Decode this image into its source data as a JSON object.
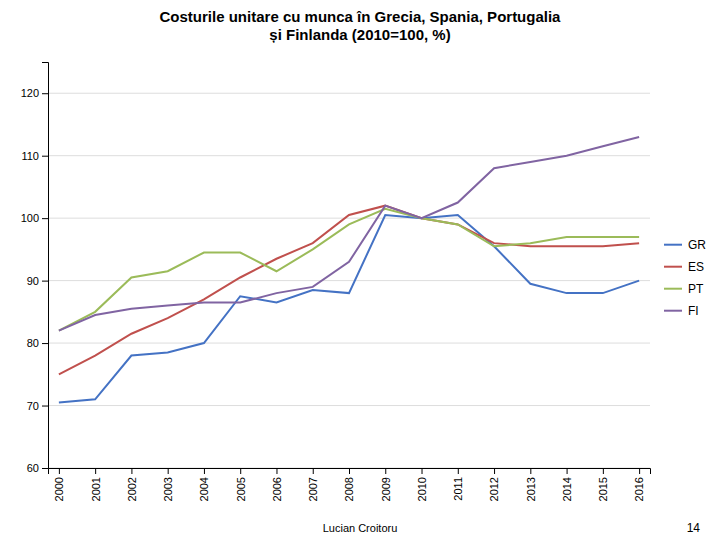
{
  "chart_data": {
    "type": "line",
    "title": "Costurile unitare cu munca în Grecia, Spania, Portugalia\nși Finlanda (2010=100, %)",
    "xlabel": "Lucian Croitoru",
    "annotations": [
      "14"
    ],
    "x": [
      2000,
      2001,
      2002,
      2003,
      2004,
      2005,
      2006,
      2007,
      2008,
      2009,
      2010,
      2011,
      2012,
      2013,
      2014,
      2015,
      2016
    ],
    "series": [
      {
        "name": "GR",
        "color": "#4472C4",
        "values": [
          70.5,
          71.0,
          78.0,
          78.5,
          80.0,
          87.5,
          86.5,
          88.5,
          88.0,
          100.5,
          100.0,
          100.5,
          95.5,
          89.5,
          88.0,
          88.0,
          90.0
        ]
      },
      {
        "name": "ES",
        "color": "#C0504D",
        "values": [
          75.0,
          78.0,
          81.5,
          84.0,
          87.0,
          90.5,
          93.5,
          96.0,
          100.5,
          102.0,
          100.0,
          99.0,
          96.0,
          95.5,
          95.5,
          95.5,
          96.0
        ]
      },
      {
        "name": "PT",
        "color": "#9BBB59",
        "values": [
          82.0,
          85.0,
          90.5,
          91.5,
          94.5,
          94.5,
          91.5,
          95.0,
          99.0,
          101.5,
          100.0,
          99.0,
          95.5,
          96.0,
          97.0,
          97.0,
          97.0
        ]
      },
      {
        "name": "FI",
        "color": "#8064A2",
        "values": [
          82.0,
          84.5,
          85.5,
          86.0,
          86.5,
          86.5,
          88.0,
          89.0,
          93.0,
          102.0,
          100.0,
          102.5,
          108.0,
          109.0,
          110.0,
          111.5,
          113.0
        ]
      }
    ],
    "xlim": [
      1999.7,
      2016.3
    ],
    "xticks": [
      2000,
      2001,
      2002,
      2003,
      2004,
      2005,
      2006,
      2007,
      2008,
      2009,
      2010,
      2011,
      2012,
      2013,
      2014,
      2015,
      2016
    ],
    "ylim": [
      60,
      125
    ],
    "yticks": [
      60,
      70,
      80,
      90,
      100,
      110,
      120
    ],
    "grid": true,
    "legend": "right"
  }
}
